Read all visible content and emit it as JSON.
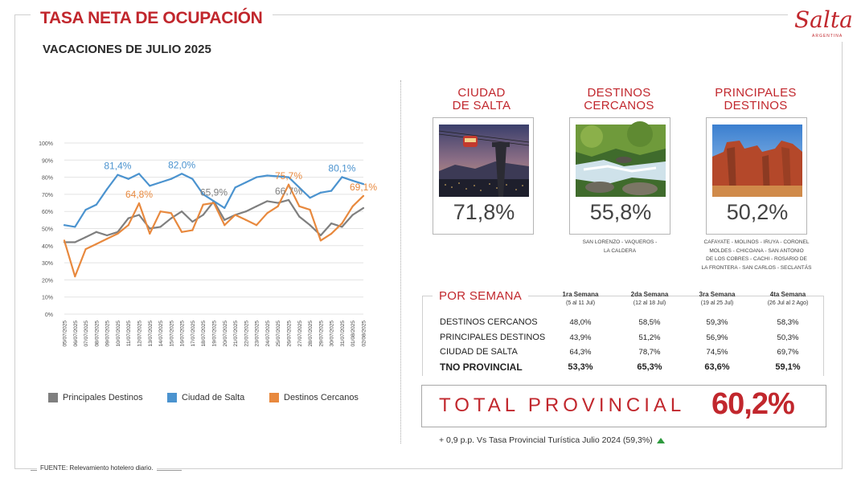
{
  "header": {
    "title": "TASA NETA DE OCUPACIÓN",
    "subtitle": "VACACIONES DE JULIO 2025",
    "logo_text": "Salta",
    "logo_subtext": "ARGENTINA"
  },
  "chart_data": {
    "type": "line",
    "categories": [
      "05/07/2025",
      "06/07/2025",
      "07/07/2025",
      "08/07/2025",
      "09/07/2025",
      "10/07/2025",
      "11/07/2025",
      "12/07/2025",
      "13/07/2025",
      "14/07/2025",
      "15/07/2025",
      "16/07/2025",
      "17/07/2025",
      "18/07/2025",
      "19/07/2025",
      "20/07/2025",
      "21/07/2025",
      "22/07/2025",
      "23/07/2025",
      "24/07/2025",
      "25/07/2025",
      "26/07/2025",
      "27/07/2025",
      "28/07/2025",
      "29/07/2025",
      "30/07/2025",
      "31/07/2025",
      "01/08/2025",
      "02/08/2025"
    ],
    "y_ticks": [
      "0%",
      "10%",
      "20%",
      "30%",
      "40%",
      "50%",
      "60%",
      "70%",
      "80%",
      "90%",
      "100%"
    ],
    "ylim": [
      0,
      100
    ],
    "series": [
      {
        "name": "Principales Destinos",
        "color": "#7f7f7f",
        "values": [
          42,
          42,
          45,
          48,
          46,
          48,
          56,
          58,
          50,
          51,
          56,
          60,
          54,
          58,
          65.9,
          55,
          58,
          60,
          63,
          66,
          65,
          66.7,
          57,
          52,
          46,
          53,
          51,
          58,
          62
        ]
      },
      {
        "name": "Ciudad de Salta",
        "color": "#4b93cf",
        "values": [
          52,
          51,
          61,
          64,
          73,
          81.4,
          79,
          82,
          75,
          77,
          79,
          82,
          79,
          70,
          66,
          62,
          74,
          77,
          80,
          81,
          80.5,
          80,
          74,
          68,
          71,
          72,
          80.1,
          78,
          76
        ]
      },
      {
        "name": "Destinos Cercanos",
        "color": "#e8893e",
        "values": [
          43,
          22,
          38,
          41,
          44,
          47,
          52,
          64.8,
          47,
          60,
          59,
          48,
          49,
          64,
          65,
          52,
          58,
          55,
          52,
          59,
          63,
          75.7,
          63,
          61,
          43,
          47,
          53,
          63,
          69.1
        ]
      }
    ],
    "annotations": [
      {
        "series": 1,
        "index": 5,
        "label": "81,4%"
      },
      {
        "series": 1,
        "index": 11,
        "label": "82,0%"
      },
      {
        "series": 1,
        "index": 26,
        "label": "80,1%"
      },
      {
        "series": 2,
        "index": 7,
        "label": "64,8%"
      },
      {
        "series": 2,
        "index": 21,
        "label": "75,7%"
      },
      {
        "series": 2,
        "index": 28,
        "label": "69,1%"
      },
      {
        "series": 0,
        "index": 14,
        "label": "65,9%"
      },
      {
        "series": 0,
        "index": 21,
        "label": "66,7%"
      }
    ],
    "legend": [
      "Principales Destinos",
      "Ciudad de Salta",
      "Destinos Cercanos"
    ]
  },
  "categories": [
    {
      "title_line1": "CIUDAD",
      "title_line2": "DE SALTA",
      "pct": "71,8%",
      "icon": "cable-car-photo",
      "note": []
    },
    {
      "title_line1": "DESTINOS",
      "title_line2": "CERCANOS",
      "pct": "55,8%",
      "icon": "river-photo",
      "note": [
        "SAN LORENZO - VAQUEROS -",
        "LA CALDERA"
      ]
    },
    {
      "title_line1": "PRINCIPALES",
      "title_line2": "DESTINOS",
      "pct": "50,2%",
      "icon": "red-rocks-photo",
      "note": [
        "CAFAYATE - MOLINOS - IRUYA - CORONEL",
        "MOLDES - CHICOANA - SAN ANTONIO",
        "DE LOS COBRES - CACHI - ROSARIO DE",
        "LA FRONTERA - SAN CARLOS - SECLANTÁS"
      ]
    }
  ],
  "weekly": {
    "title": "POR SEMANA",
    "weeks": [
      {
        "name": "1ra Semana",
        "range": "(5 al 11 Jul)"
      },
      {
        "name": "2da Semana",
        "range": "(12 al 18 Jul)"
      },
      {
        "name": "3ra Semana",
        "range": "(19 al 25 Jul)"
      },
      {
        "name": "4ta Semana",
        "range": "(26 Jul al 2 Ago)"
      }
    ],
    "rows": [
      {
        "label": "DESTINOS CERCANOS",
        "values": [
          "48,0%",
          "58,5%",
          "59,3%",
          "58,3%"
        ]
      },
      {
        "label": "PRINCIPALES DESTINOS",
        "values": [
          "43,9%",
          "51,2%",
          "56,9%",
          "50,3%"
        ]
      },
      {
        "label": "CIUDAD DE SALTA",
        "values": [
          "64,3%",
          "78,7%",
          "74,5%",
          "69,7%"
        ]
      },
      {
        "label": "TNO PROVINCIAL",
        "values": [
          "53,3%",
          "65,3%",
          "63,6%",
          "59,1%"
        ]
      }
    ]
  },
  "total": {
    "label": "TOTAL PROVINCIAL",
    "value": "60,2%"
  },
  "comparison": "+ 0,9 p.p. Vs Tasa Provincial Turística Julio 2024 (59,3%)",
  "footer": "FUENTE: Relevamiento hotelero diario.",
  "colors": {
    "accent": "#c1272d",
    "up_arrow": "#2e9a3e"
  }
}
